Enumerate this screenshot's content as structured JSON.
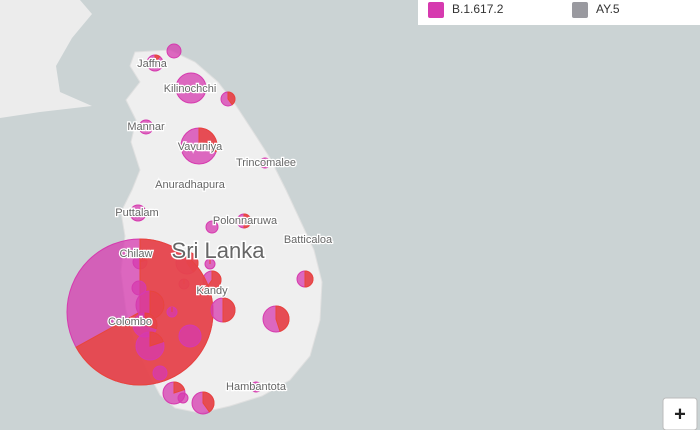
{
  "map": {
    "places": [
      "Jaffna",
      "Kilinochchi",
      "Mannar",
      "Vavuniya",
      "Trincomalee",
      "Anuradhapura",
      "Puttalam",
      "Polonnaruwa",
      "Batticaloa",
      "Chilaw",
      "Kandy",
      "Colombo",
      "Hambantota"
    ],
    "country": "Sri Lanka"
  },
  "legend": [
    {
      "name": "B.1.617.2",
      "color": "#d63aaf"
    },
    {
      "name": "AY.5",
      "color": "#9a9aa0"
    }
  ],
  "controls": {
    "zoom_in": "+"
  }
}
